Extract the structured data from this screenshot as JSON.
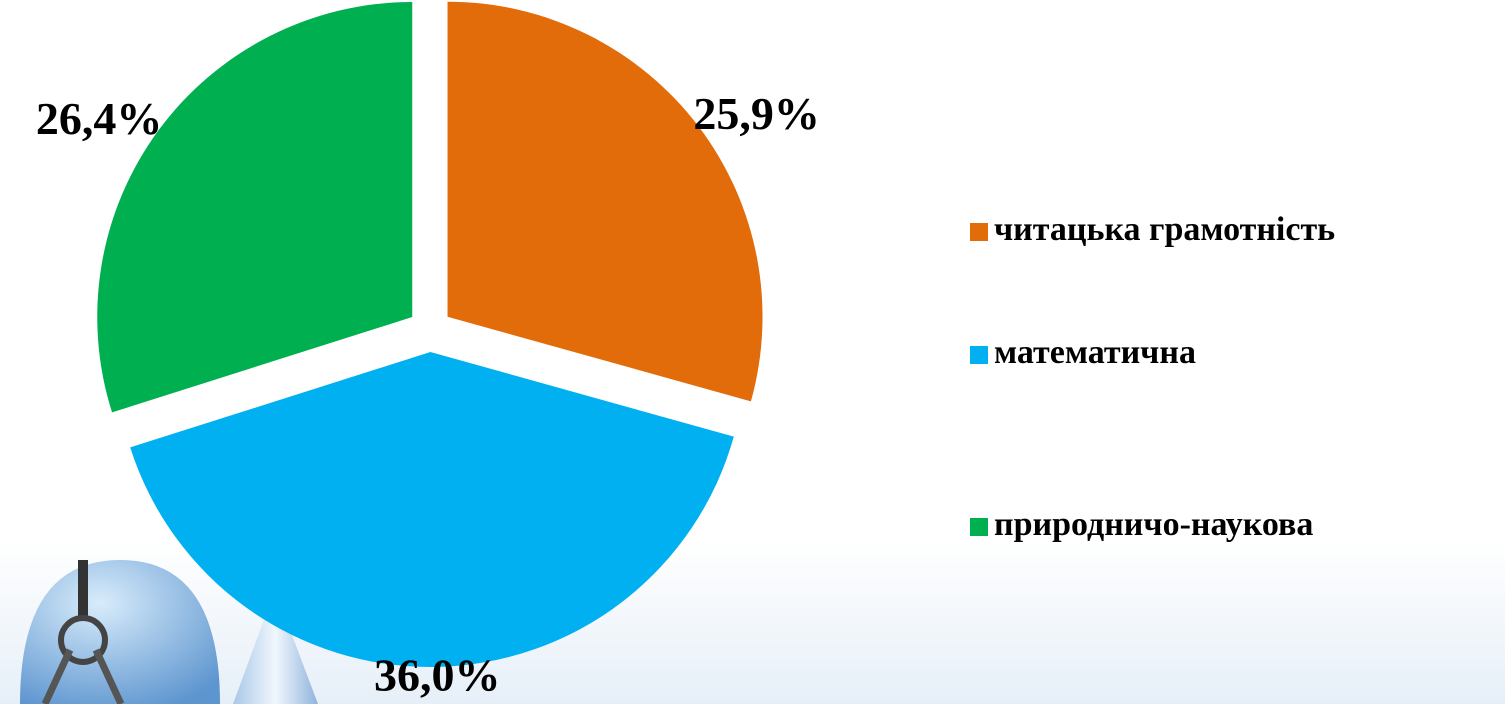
{
  "chart_data": {
    "type": "pie",
    "categories": [
      "читацька  грамотність",
      "математична",
      "природничо-наукова"
    ],
    "values": [
      25.9,
      36.0,
      26.4
    ],
    "value_labels": [
      "25,9%",
      "36,0%",
      "26,4%"
    ],
    "colors": [
      "#e36c0a",
      "#00b0f0",
      "#00b050"
    ],
    "legend": "right"
  }
}
